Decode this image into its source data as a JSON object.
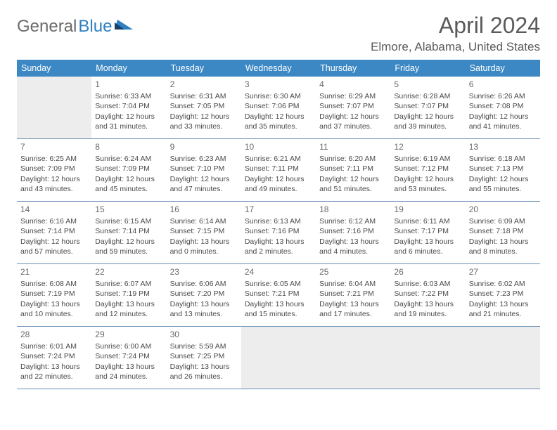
{
  "brand": {
    "part1": "General",
    "part2": "Blue"
  },
  "title": "April 2024",
  "location": "Elmore, Alabama, United States",
  "colors": {
    "header_bg": "#3b88c4",
    "header_text": "#ffffff",
    "border": "#6a8fb5",
    "empty_bg": "#ededed",
    "text": "#4a4a4a",
    "title": "#5a5a5a"
  },
  "dayNames": [
    "Sunday",
    "Monday",
    "Tuesday",
    "Wednesday",
    "Thursday",
    "Friday",
    "Saturday"
  ],
  "weeks": [
    [
      null,
      {
        "n": "1",
        "sr": "6:33 AM",
        "ss": "7:04 PM",
        "dl1": "Daylight: 12 hours",
        "dl2": "and 31 minutes."
      },
      {
        "n": "2",
        "sr": "6:31 AM",
        "ss": "7:05 PM",
        "dl1": "Daylight: 12 hours",
        "dl2": "and 33 minutes."
      },
      {
        "n": "3",
        "sr": "6:30 AM",
        "ss": "7:06 PM",
        "dl1": "Daylight: 12 hours",
        "dl2": "and 35 minutes."
      },
      {
        "n": "4",
        "sr": "6:29 AM",
        "ss": "7:07 PM",
        "dl1": "Daylight: 12 hours",
        "dl2": "and 37 minutes."
      },
      {
        "n": "5",
        "sr": "6:28 AM",
        "ss": "7:07 PM",
        "dl1": "Daylight: 12 hours",
        "dl2": "and 39 minutes."
      },
      {
        "n": "6",
        "sr": "6:26 AM",
        "ss": "7:08 PM",
        "dl1": "Daylight: 12 hours",
        "dl2": "and 41 minutes."
      }
    ],
    [
      {
        "n": "7",
        "sr": "6:25 AM",
        "ss": "7:09 PM",
        "dl1": "Daylight: 12 hours",
        "dl2": "and 43 minutes."
      },
      {
        "n": "8",
        "sr": "6:24 AM",
        "ss": "7:09 PM",
        "dl1": "Daylight: 12 hours",
        "dl2": "and 45 minutes."
      },
      {
        "n": "9",
        "sr": "6:23 AM",
        "ss": "7:10 PM",
        "dl1": "Daylight: 12 hours",
        "dl2": "and 47 minutes."
      },
      {
        "n": "10",
        "sr": "6:21 AM",
        "ss": "7:11 PM",
        "dl1": "Daylight: 12 hours",
        "dl2": "and 49 minutes."
      },
      {
        "n": "11",
        "sr": "6:20 AM",
        "ss": "7:11 PM",
        "dl1": "Daylight: 12 hours",
        "dl2": "and 51 minutes."
      },
      {
        "n": "12",
        "sr": "6:19 AM",
        "ss": "7:12 PM",
        "dl1": "Daylight: 12 hours",
        "dl2": "and 53 minutes."
      },
      {
        "n": "13",
        "sr": "6:18 AM",
        "ss": "7:13 PM",
        "dl1": "Daylight: 12 hours",
        "dl2": "and 55 minutes."
      }
    ],
    [
      {
        "n": "14",
        "sr": "6:16 AM",
        "ss": "7:14 PM",
        "dl1": "Daylight: 12 hours",
        "dl2": "and 57 minutes."
      },
      {
        "n": "15",
        "sr": "6:15 AM",
        "ss": "7:14 PM",
        "dl1": "Daylight: 12 hours",
        "dl2": "and 59 minutes."
      },
      {
        "n": "16",
        "sr": "6:14 AM",
        "ss": "7:15 PM",
        "dl1": "Daylight: 13 hours",
        "dl2": "and 0 minutes."
      },
      {
        "n": "17",
        "sr": "6:13 AM",
        "ss": "7:16 PM",
        "dl1": "Daylight: 13 hours",
        "dl2": "and 2 minutes."
      },
      {
        "n": "18",
        "sr": "6:12 AM",
        "ss": "7:16 PM",
        "dl1": "Daylight: 13 hours",
        "dl2": "and 4 minutes."
      },
      {
        "n": "19",
        "sr": "6:11 AM",
        "ss": "7:17 PM",
        "dl1": "Daylight: 13 hours",
        "dl2": "and 6 minutes."
      },
      {
        "n": "20",
        "sr": "6:09 AM",
        "ss": "7:18 PM",
        "dl1": "Daylight: 13 hours",
        "dl2": "and 8 minutes."
      }
    ],
    [
      {
        "n": "21",
        "sr": "6:08 AM",
        "ss": "7:19 PM",
        "dl1": "Daylight: 13 hours",
        "dl2": "and 10 minutes."
      },
      {
        "n": "22",
        "sr": "6:07 AM",
        "ss": "7:19 PM",
        "dl1": "Daylight: 13 hours",
        "dl2": "and 12 minutes."
      },
      {
        "n": "23",
        "sr": "6:06 AM",
        "ss": "7:20 PM",
        "dl1": "Daylight: 13 hours",
        "dl2": "and 13 minutes."
      },
      {
        "n": "24",
        "sr": "6:05 AM",
        "ss": "7:21 PM",
        "dl1": "Daylight: 13 hours",
        "dl2": "and 15 minutes."
      },
      {
        "n": "25",
        "sr": "6:04 AM",
        "ss": "7:21 PM",
        "dl1": "Daylight: 13 hours",
        "dl2": "and 17 minutes."
      },
      {
        "n": "26",
        "sr": "6:03 AM",
        "ss": "7:22 PM",
        "dl1": "Daylight: 13 hours",
        "dl2": "and 19 minutes."
      },
      {
        "n": "27",
        "sr": "6:02 AM",
        "ss": "7:23 PM",
        "dl1": "Daylight: 13 hours",
        "dl2": "and 21 minutes."
      }
    ],
    [
      {
        "n": "28",
        "sr": "6:01 AM",
        "ss": "7:24 PM",
        "dl1": "Daylight: 13 hours",
        "dl2": "and 22 minutes."
      },
      {
        "n": "29",
        "sr": "6:00 AM",
        "ss": "7:24 PM",
        "dl1": "Daylight: 13 hours",
        "dl2": "and 24 minutes."
      },
      {
        "n": "30",
        "sr": "5:59 AM",
        "ss": "7:25 PM",
        "dl1": "Daylight: 13 hours",
        "dl2": "and 26 minutes."
      },
      null,
      null,
      null,
      null
    ]
  ]
}
